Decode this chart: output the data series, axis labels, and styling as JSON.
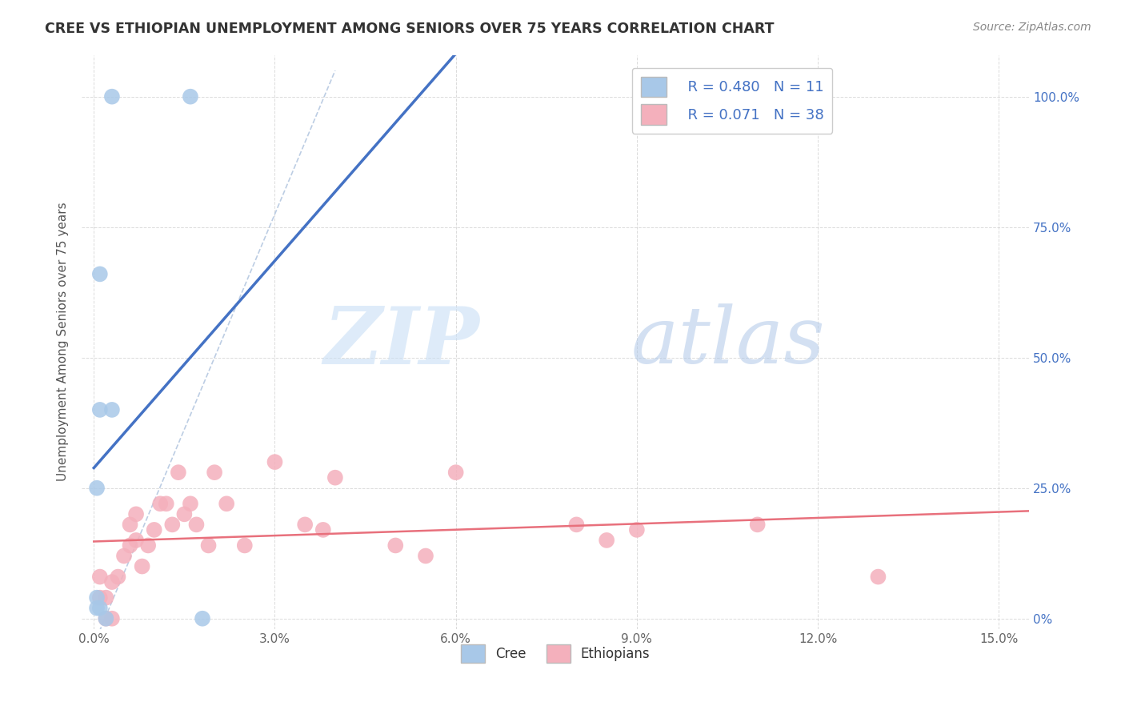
{
  "title": "CREE VS ETHIOPIAN UNEMPLOYMENT AMONG SENIORS OVER 75 YEARS CORRELATION CHART",
  "source": "Source: ZipAtlas.com",
  "ylabel": "Unemployment Among Seniors over 75 years",
  "x_tick_labels": [
    "0.0%",
    "3.0%",
    "6.0%",
    "9.0%",
    "12.0%",
    "15.0%"
  ],
  "x_ticks": [
    0.0,
    0.03,
    0.06,
    0.09,
    0.12,
    0.15
  ],
  "y_tick_labels": [
    "",
    "25.0%",
    "50.0%",
    "75.0%",
    "100.0%"
  ],
  "y_ticks_right": [
    "0%",
    "25.0%",
    "50.0%",
    "75.0%",
    "100.0%"
  ],
  "y_ticks": [
    0.0,
    0.25,
    0.5,
    0.75,
    1.0
  ],
  "xlim": [
    -0.002,
    0.155
  ],
  "ylim": [
    -0.02,
    1.08
  ],
  "cree_R": 0.48,
  "cree_N": 11,
  "ethiopian_R": 0.071,
  "ethiopian_N": 38,
  "cree_color": "#a8c8e8",
  "cree_line_color": "#4472c4",
  "ethiopian_color": "#f4b0bc",
  "ethiopian_line_color": "#e8707c",
  "watermark_zip": "ZIP",
  "watermark_atlas": "atlas",
  "cree_x": [
    0.003,
    0.016,
    0.001,
    0.003,
    0.001,
    0.0005,
    0.0005,
    0.0005,
    0.001,
    0.002,
    0.018
  ],
  "cree_y": [
    1.0,
    1.0,
    0.66,
    0.4,
    0.4,
    0.25,
    0.04,
    0.02,
    0.02,
    0.0,
    0.0
  ],
  "ethiopian_x": [
    0.001,
    0.001,
    0.002,
    0.002,
    0.003,
    0.003,
    0.004,
    0.005,
    0.006,
    0.006,
    0.007,
    0.007,
    0.008,
    0.009,
    0.01,
    0.011,
    0.012,
    0.013,
    0.014,
    0.015,
    0.016,
    0.017,
    0.019,
    0.02,
    0.022,
    0.025,
    0.03,
    0.035,
    0.038,
    0.04,
    0.05,
    0.055,
    0.06,
    0.08,
    0.085,
    0.09,
    0.11,
    0.13
  ],
  "ethiopian_y": [
    0.04,
    0.08,
    0.0,
    0.04,
    0.0,
    0.07,
    0.08,
    0.12,
    0.14,
    0.18,
    0.15,
    0.2,
    0.1,
    0.14,
    0.17,
    0.22,
    0.22,
    0.18,
    0.28,
    0.2,
    0.22,
    0.18,
    0.14,
    0.28,
    0.22,
    0.14,
    0.3,
    0.18,
    0.17,
    0.27,
    0.14,
    0.12,
    0.28,
    0.18,
    0.15,
    0.17,
    0.18,
    0.08
  ]
}
